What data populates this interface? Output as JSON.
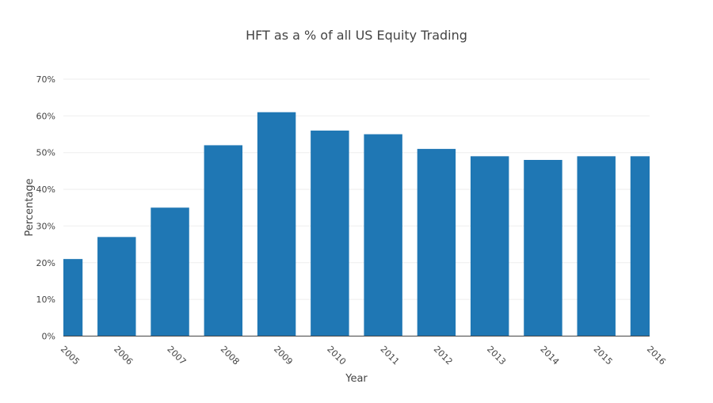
{
  "chart_data": {
    "type": "bar",
    "title": "HFT as a % of all US Equity Trading",
    "xlabel": "Year",
    "ylabel": "Percentage",
    "categories": [
      "2005",
      "2006",
      "2007",
      "2008",
      "2009",
      "2010",
      "2011",
      "2012",
      "2013",
      "2014",
      "2015",
      "2016"
    ],
    "values": [
      21,
      27,
      35,
      52,
      61,
      56,
      55,
      51,
      49,
      48,
      49,
      49
    ],
    "ylim": [
      0,
      70
    ],
    "yticks": [
      0,
      10,
      20,
      30,
      40,
      50,
      60,
      70
    ],
    "ytick_labels": [
      "0%",
      "10%",
      "20%",
      "30%",
      "40%",
      "50%",
      "60%",
      "70%"
    ],
    "grid": true,
    "legend": "none",
    "bar_color": "#1f77b4",
    "grid_color": "#eeeeee",
    "axis_color": "#444444"
  }
}
